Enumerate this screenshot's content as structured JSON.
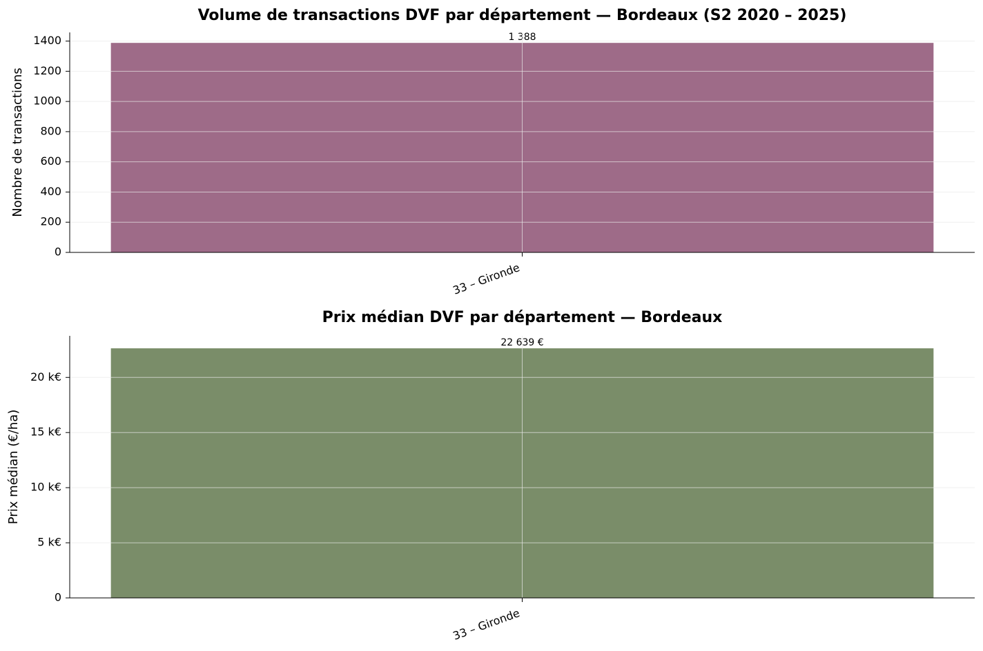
{
  "chart_data": [
    {
      "type": "bar",
      "title": "Volume de transactions DVF par département — Bordeaux (S2 2020 – 2025)",
      "y_label": "Nombre de transactions",
      "categories": [
        "33 – Gironde"
      ],
      "values": [
        1388
      ],
      "value_labels": [
        "1 388"
      ],
      "color": "#9e6b88",
      "ylim": [
        0,
        1457.4
      ],
      "yticks": [
        0,
        200,
        400,
        600,
        800,
        1000,
        1200,
        1400
      ],
      "grid": true
    },
    {
      "type": "bar",
      "title": "Prix médian DVF par département — Bordeaux",
      "y_label": "Prix médian (€/ha)",
      "categories": [
        "33 – Gironde"
      ],
      "values": [
        22639
      ],
      "value_labels": [
        "22 639 €"
      ],
      "color": "#7a8d69",
      "ylim": [
        0,
        23771
      ],
      "yticks": [
        0,
        {
          "value": 5000,
          "label": "5 k€"
        },
        {
          "value": 10000,
          "label": "10 k€"
        },
        {
          "value": 15000,
          "label": "15 k€"
        },
        {
          "value": 20000,
          "label": "20 k€"
        }
      ],
      "grid": true
    }
  ]
}
